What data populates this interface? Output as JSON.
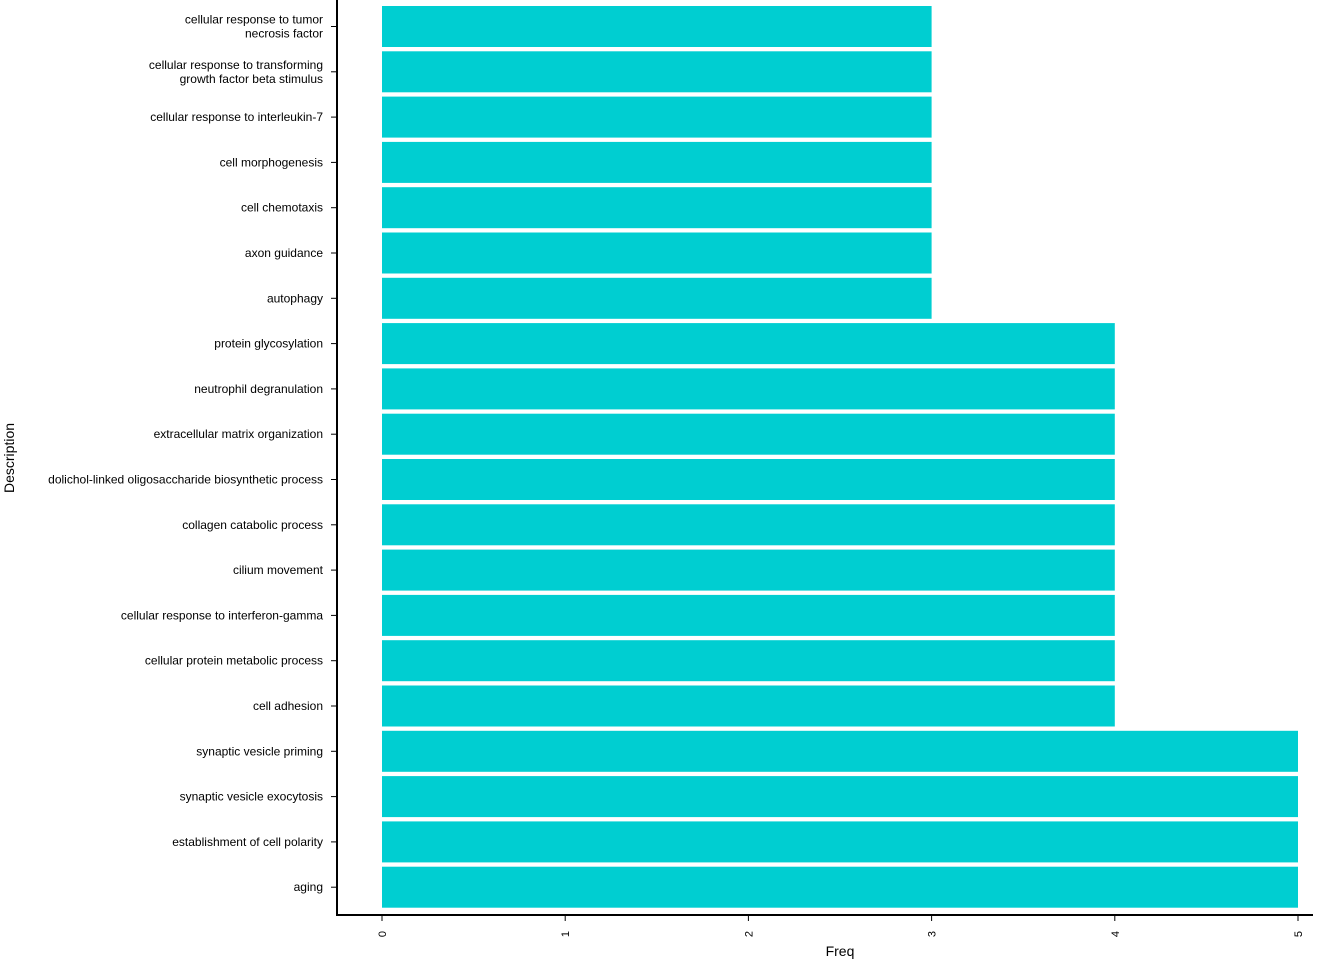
{
  "chart_data": {
    "type": "bar",
    "orientation": "horizontal",
    "xlabel": "Freq",
    "ylabel": "Description",
    "xlim": [
      0,
      5.05
    ],
    "x_ticks": [
      "0",
      "1",
      "2",
      "3",
      "4",
      "5"
    ],
    "grid": false,
    "bar_color": "#00CED1",
    "categories": [
      "cellular response to tumor\nnecrosis factor",
      "cellular response to transforming\ngrowth factor beta stimulus",
      "cellular response to interleukin-7",
      "cell morphogenesis",
      "cell chemotaxis",
      "axon guidance",
      "autophagy",
      "protein glycosylation",
      "neutrophil degranulation",
      "extracellular matrix organization",
      "dolichol-linked oligosaccharide biosynthetic process",
      "collagen catabolic process",
      "cilium movement",
      "cellular response to interferon-gamma",
      "cellular protein metabolic process",
      "cell adhesion",
      "synaptic vesicle priming",
      "synaptic vesicle exocytosis",
      "establishment of cell polarity",
      "aging"
    ],
    "values": [
      3,
      3,
      3,
      3,
      3,
      3,
      3,
      4,
      4,
      4,
      4,
      4,
      4,
      4,
      4,
      4,
      5,
      5,
      5,
      5
    ]
  }
}
